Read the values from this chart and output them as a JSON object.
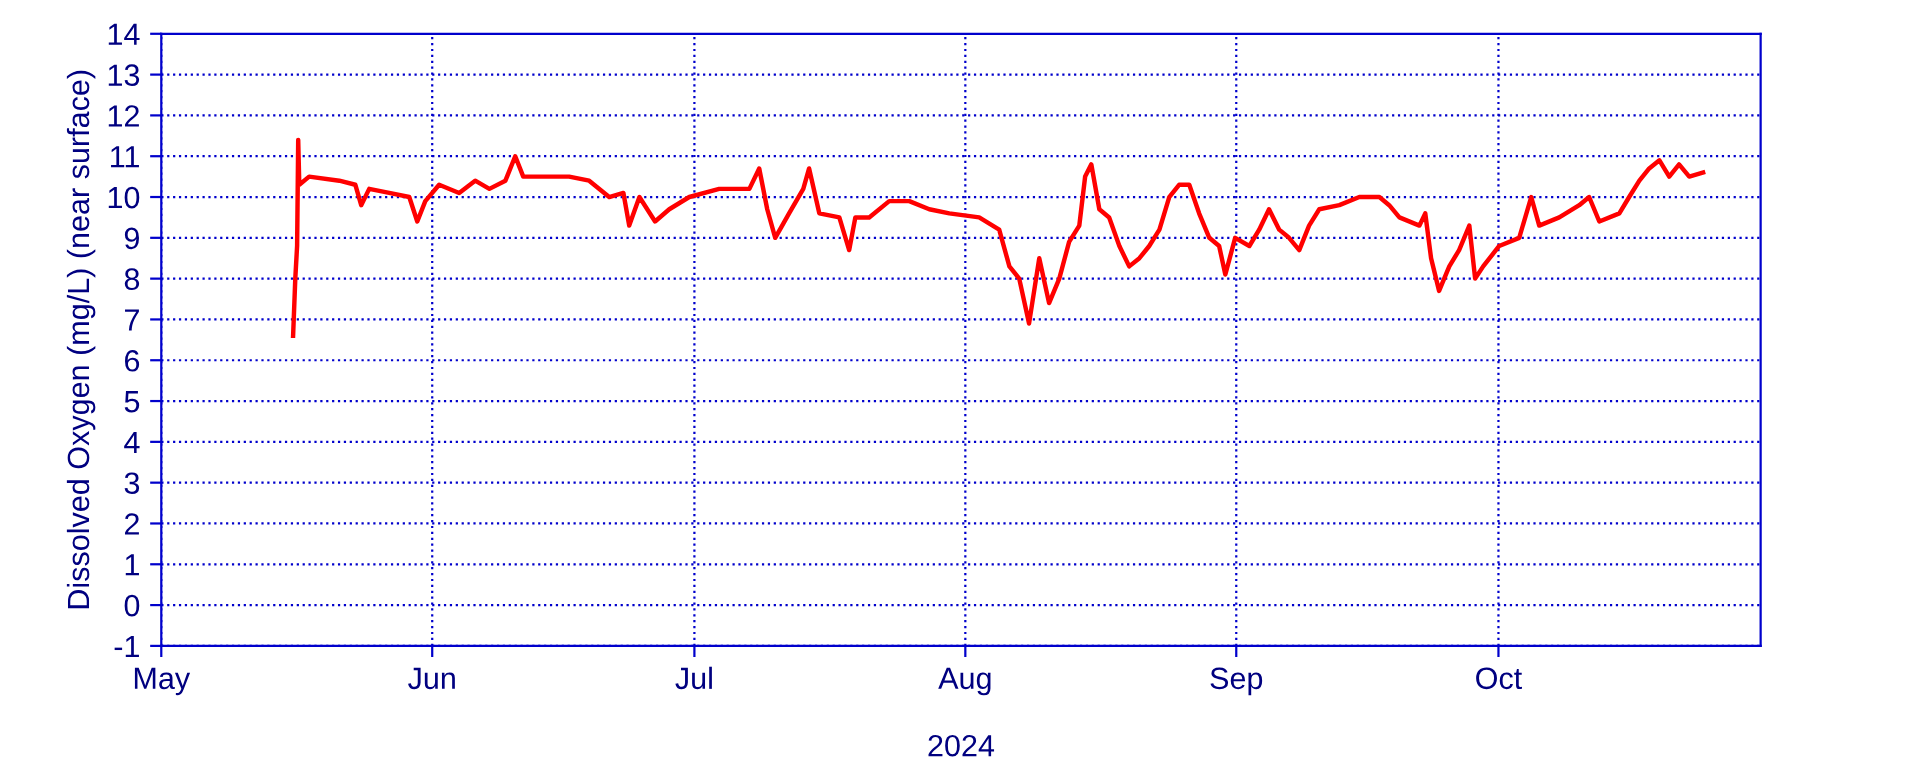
{
  "chart_data": {
    "type": "line",
    "xlabel": "2024",
    "ylabel": "Dissolved Oxygen (mg/L) (near surface)",
    "xlim": [
      "2024-05-01",
      "2024-10-31"
    ],
    "xticks": [
      {
        "value": "2024-05-01",
        "label": "May"
      },
      {
        "value": "2024-06-01",
        "label": "Jun"
      },
      {
        "value": "2024-07-01",
        "label": "Jul"
      },
      {
        "value": "2024-08-01",
        "label": "Aug"
      },
      {
        "value": "2024-09-01",
        "label": "Sep"
      },
      {
        "value": "2024-10-01",
        "label": "Oct"
      }
    ],
    "ylim": [
      -1,
      14
    ],
    "yticks": [
      -1,
      0,
      1,
      2,
      3,
      4,
      5,
      6,
      7,
      8,
      9,
      10,
      11,
      12,
      13,
      14
    ],
    "grid": true,
    "line_style": "solid",
    "marker": "none",
    "legend": false,
    "series": [
      {
        "color": "#ff0000",
        "x": [
          "2024-05-16T02:00",
          "2024-05-16T08:00",
          "2024-05-16T13:00",
          "2024-05-16T16:00",
          "2024-05-16T19:00",
          "2024-05-17T22:00",
          "2024-05-21T09:00",
          "2024-05-23T05:00",
          "2024-05-23T21:00",
          "2024-05-24T19:00",
          "2024-05-27T02:00",
          "2024-05-29T09:00",
          "2024-05-30T07:00",
          "2024-05-31T05:00",
          "2024-06-01T19:00",
          "2024-06-04T02:00",
          "2024-06-05T22:00",
          "2024-06-07T13:00",
          "2024-06-09T09:00",
          "2024-06-10T12:00",
          "2024-06-11T10:00",
          "2024-06-13T06:00",
          "2024-06-16T16:00",
          "2024-06-18T23:00",
          "2024-06-21T06:00",
          "2024-06-22T21:00",
          "2024-06-23T13:00",
          "2024-06-24T17:00",
          "2024-06-26T12:00",
          "2024-06-28T03:00",
          "2024-06-30T10:00",
          "2024-07-03T20:00",
          "2024-07-07T07:00",
          "2024-07-08T10:00",
          "2024-07-09T08:00",
          "2024-07-10T06:00",
          "2024-07-11T20:00",
          "2024-07-13T11:00",
          "2024-07-14T03:00",
          "2024-07-15T07:00",
          "2024-07-17T14:00",
          "2024-07-18T17:00",
          "2024-07-19T10:00",
          "2024-07-21T00:00",
          "2024-07-23T07:00",
          "2024-07-25T14:00",
          "2024-07-27T21:00",
          "2024-07-30T04:00",
          "2024-08-02T14:00",
          "2024-08-04T21:00",
          "2024-08-06T01:00",
          "2024-08-07T04:00",
          "2024-08-08T07:00",
          "2024-08-09T11:00",
          "2024-08-10T14:00",
          "2024-08-11T18:00",
          "2024-08-12T21:00",
          "2024-08-14T01:00",
          "2024-08-14T17:00",
          "2024-08-15T10:00",
          "2024-08-16T08:00",
          "2024-08-17T11:00",
          "2024-08-18T15:00",
          "2024-08-19T18:00",
          "2024-08-20T22:00",
          "2024-08-22T01:00",
          "2024-08-23T05:00",
          "2024-08-24T08:00",
          "2024-08-25T11:00",
          "2024-08-26T15:00",
          "2024-08-27T18:00",
          "2024-08-28T22:00",
          "2024-08-30T01:00",
          "2024-08-30T18:00",
          "2024-08-31T21:00",
          "2024-09-02T12:00",
          "2024-09-03T15:00",
          "2024-09-04T18:00",
          "2024-09-05T22:00",
          "2024-09-07T01:00",
          "2024-09-08T05:00",
          "2024-09-09T08:00",
          "2024-09-10T12:00",
          "2024-09-12T19:00",
          "2024-09-15T02:00",
          "2024-09-17T09:00",
          "2024-09-18T12:00",
          "2024-09-19T16:00",
          "2024-09-21T23:00",
          "2024-09-22T15:00",
          "2024-09-23T07:00",
          "2024-09-24T05:00",
          "2024-09-25T09:00",
          "2024-09-26T12:00",
          "2024-09-27T16:00",
          "2024-09-28T08:00",
          "2024-09-29T06:00",
          "2024-10-01T02:00",
          "2024-10-03T09:00",
          "2024-10-04T18:00",
          "2024-10-05T16:00",
          "2024-10-07T23:00",
          "2024-10-10T06:00",
          "2024-10-11T09:00",
          "2024-10-12T13:00",
          "2024-10-14T20:00",
          "2024-10-15T23:00",
          "2024-10-17T03:00",
          "2024-10-18T06:00",
          "2024-10-19T10:00",
          "2024-10-20T13:00",
          "2024-10-21T16:00",
          "2024-10-22T20:00",
          "2024-10-24T10:00"
        ],
        "values": [
          6.6,
          8.0,
          8.8,
          11.4,
          10.3,
          10.5,
          10.4,
          10.3,
          9.8,
          10.2,
          10.1,
          10.0,
          9.4,
          9.9,
          10.3,
          10.1,
          10.4,
          10.2,
          10.4,
          11.0,
          10.5,
          10.5,
          10.5,
          10.4,
          10.0,
          10.1,
          9.3,
          10.0,
          9.4,
          9.7,
          10.0,
          10.2,
          10.2,
          10.7,
          9.7,
          9.0,
          9.6,
          10.2,
          10.7,
          9.6,
          9.5,
          8.7,
          9.5,
          9.5,
          9.9,
          9.9,
          9.7,
          9.6,
          9.5,
          9.2,
          8.3,
          8.0,
          6.9,
          8.5,
          7.4,
          8.0,
          8.9,
          9.3,
          10.5,
          10.8,
          9.7,
          9.5,
          8.8,
          8.3,
          8.5,
          8.8,
          9.2,
          10.0,
          10.3,
          10.3,
          9.6,
          9.0,
          8.8,
          8.1,
          9.0,
          8.8,
          9.2,
          9.7,
          9.2,
          9.0,
          8.7,
          9.3,
          9.7,
          9.8,
          10.0,
          10.0,
          9.8,
          9.5,
          9.3,
          9.6,
          8.5,
          7.7,
          8.3,
          8.7,
          9.3,
          8.0,
          8.3,
          8.8,
          9.0,
          10.0,
          9.3,
          9.5,
          9.8,
          10.0,
          9.4,
          9.6,
          10.0,
          10.4,
          10.7,
          10.9,
          10.5,
          10.8,
          10.5,
          10.6
        ]
      }
    ]
  }
}
